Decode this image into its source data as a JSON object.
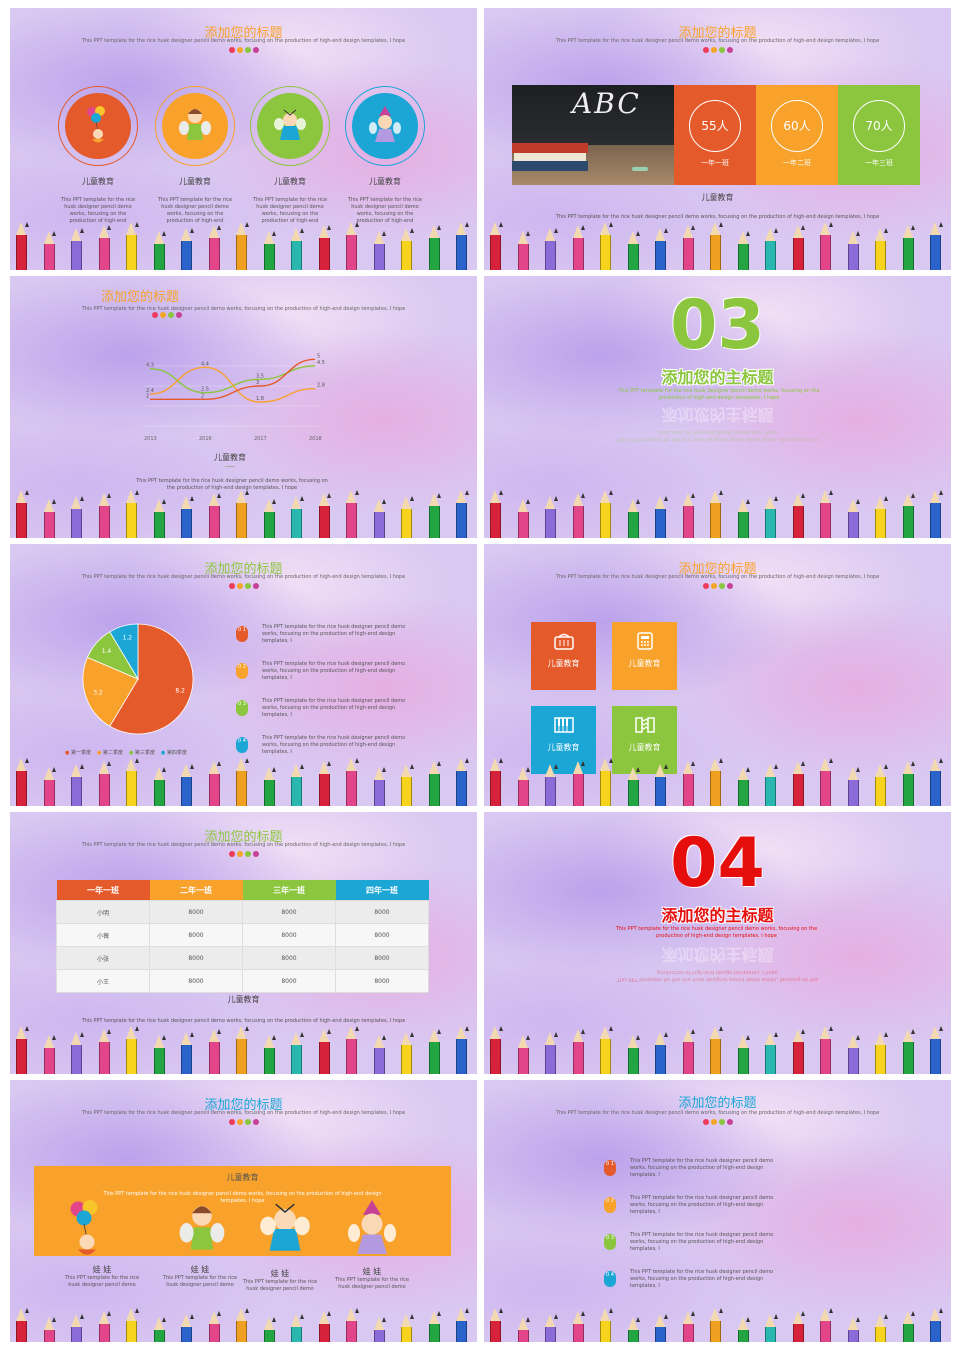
{
  "colors": {
    "red": "#e55a2b",
    "orange": "#f8a12b",
    "green": "#8cc63e",
    "blue": "#1ba6d6",
    "pink": "#e24589",
    "accent_dots": [
      "#ec3b5a",
      "#f3a526",
      "#8bc53f",
      "#c74296"
    ]
  },
  "common": {
    "slide_title": "添加您的标题",
    "slide_sub": "This PPT template for the rice husk designer pencil demo works, focusing on the production of high-end design templates, I hope",
    "short_text": "This PPT template for the rice husk designer pencil demo works, focusing on the production of high-end design templates, I",
    "kids_label": "儿童教育",
    "desc_short": "This PPT template for the rice husk designer pencil demo works, focusing on the production of high-end design templates, I hope"
  },
  "s1": {
    "items": [
      {
        "label": "儿童教育",
        "text": "This PPT template for the rice husk designer pencil demo works, focusing on the production of high-end"
      },
      {
        "label": "儿童教育",
        "text": "This PPT template for the rice husk designer pencil demo works, focusing on the production of high-end"
      },
      {
        "label": "儿童教育",
        "text": "This PPT template for the rice husk designer pencil demo works, focusing on the production of high-end"
      },
      {
        "label": "儿童教育",
        "text": "This PPT template for the rice husk designer pencil demo works, focusing on the production of high-end"
      }
    ]
  },
  "s2": {
    "board_text": "ABC",
    "stats": [
      {
        "value": "55人",
        "label": "一年一班"
      },
      {
        "value": "60人",
        "label": "一年二班"
      },
      {
        "value": "70人",
        "label": "一年三班"
      }
    ],
    "caption": "儿童教育",
    "desc": "This PPT template for the rice husk designer pencil demo works, focusing on the production of high-end design templates, I hope"
  },
  "s3": {
    "caption": "儿童教育",
    "desc": "This PPT template for the rice husk designer pencil demo works, focusing on the production of high-end design templates, I hope"
  },
  "chart_data": [
    {
      "type": "line",
      "categories": [
        "2013",
        "2016",
        "2017",
        "2018"
      ],
      "series": [
        {
          "values": [
            4.3,
            2.5,
            3.5,
            4.5
          ],
          "color": "#8cc63e"
        },
        {
          "values": [
            2.4,
            4.4,
            1.8,
            2.8
          ],
          "color": "#f8a12b"
        },
        {
          "values": [
            2,
            2,
            3,
            5
          ],
          "color": "#e55a2b"
        }
      ],
      "data_labels": [
        "4.3",
        "2.4",
        "2",
        "4.4",
        "2.5",
        "2",
        "3.5",
        "3",
        "1.8",
        "5",
        "4.5",
        "2.8"
      ],
      "ylim": [
        0,
        6
      ]
    },
    {
      "type": "pie",
      "categories": [
        "第一季度",
        "第二季度",
        "第三季度",
        "第四季度"
      ],
      "values": [
        8.2,
        3.2,
        1.4,
        1.2
      ],
      "colors": [
        "#e55a2b",
        "#f8a12b",
        "#8cc63e",
        "#1ba6d6"
      ]
    }
  ],
  "s4": {
    "number": "03",
    "title": "添加您的主标题",
    "sub": "This PPT template for the rice husk designer pencil demo works, focusing on the production of high-end design templates, I hope"
  },
  "s5": {
    "items": [
      {
        "num": "0 1",
        "text": "This PPT template for the rice husk designer pencil demo works, focusing on the production of high-end design templates, I"
      },
      {
        "num": "0 2",
        "text": "This PPT template for the rice husk designer pencil demo works, focusing on the production of high-end design templates, I"
      },
      {
        "num": "0 3",
        "text": "This PPT template for the rice husk designer pencil demo works, focusing on the production of high-end design templates, I"
      },
      {
        "num": "0 4",
        "text": "This PPT template for the rice husk designer pencil demo works, focusing on the production of high-end design templates, I"
      }
    ]
  },
  "s6": {
    "tiles": [
      {
        "label": "儿童教育",
        "icon": "basket-icon"
      },
      {
        "label": "儿童教育",
        "icon": "calculator-icon"
      },
      {
        "label": "儿童教育",
        "icon": "piano-icon"
      },
      {
        "label": "儿童教育",
        "icon": "accordion-icon"
      }
    ]
  },
  "s7": {
    "headers": [
      "一年一班",
      "二年一班",
      "三年一班",
      "四年一班"
    ],
    "rows": [
      [
        "小明",
        "8000",
        "8000",
        "8000"
      ],
      [
        "小薇",
        "8000",
        "8000",
        "8000"
      ],
      [
        "小张",
        "8000",
        "8000",
        "8000"
      ],
      [
        "小王",
        "8000",
        "8000",
        "8000"
      ]
    ],
    "caption": "儿童教育",
    "desc": "This PPT template for the rice husk designer pencil demo works, focusing on the production of high-end design templates, I hope"
  },
  "s8": {
    "number": "04",
    "title": "添加您的主标题",
    "sub": "This PPT template for the rice husk designer pencil demo works, focusing on the production of high-end design templates, I hope"
  },
  "s9": {
    "band_title": "儿童教育",
    "band_text": "This PPT template for the rice husk designer pencil demo works, focusing on the production of high-end design templates, I hope",
    "kids": [
      {
        "label": "娃 娃",
        "text": "This PPT template for the rice husk designer pencil demo"
      },
      {
        "label": "娃 娃",
        "text": "This PPT template for the rice husk designer pencil demo"
      },
      {
        "label": "娃 娃",
        "text": "This PPT template for the rice husk designer pencil demo"
      },
      {
        "label": "娃 娃",
        "text": "This PPT template for the rice husk designer pencil demo"
      }
    ]
  },
  "s10": {
    "items": [
      {
        "num": "0 1",
        "text": "This PPT template for the rice husk designer pencil demo works, focusing on the production of high-end design templates, I"
      },
      {
        "num": "0 2",
        "text": "This PPT template for the rice husk designer pencil demo works, focusing on the production of high-end design templates, I"
      },
      {
        "num": "0 3",
        "text": "This PPT template for the rice husk designer pencil demo works, focusing on the production of high-end design templates, I"
      },
      {
        "num": "0 4",
        "text": "This PPT template for the rice husk designer pencil demo works, focusing on the production of high-end design templates, I"
      }
    ]
  }
}
